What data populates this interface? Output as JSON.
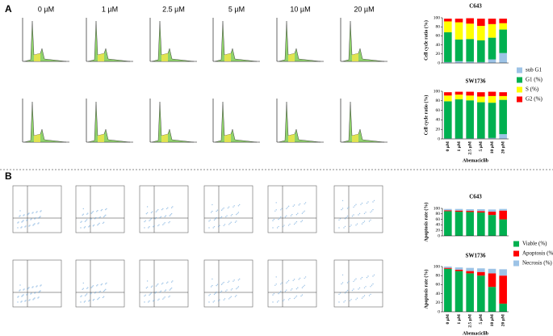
{
  "panels": {
    "a": "A",
    "b": "B"
  },
  "concentrations": [
    "0 µM",
    "1 µM",
    "2.5 µM",
    "5 µM",
    "10 µM",
    "20 µM"
  ],
  "chart_data": [
    {
      "type": "stacked-bar",
      "title": "C643",
      "ylabel": "Cell cycle ratio (%)",
      "ylim": [
        0,
        100
      ],
      "yticks": [
        0,
        20,
        40,
        60,
        80,
        100
      ],
      "legend": "right",
      "series": [
        {
          "name": "sub G1",
          "color": "#9dc3e6",
          "values": [
            2,
            4,
            3,
            2,
            8,
            22
          ]
        },
        {
          "name": "G1 (%)",
          "color": "#00b050",
          "values": [
            66,
            48,
            50,
            48,
            48,
            52
          ]
        },
        {
          "name": "S (%)",
          "color": "#ffff00",
          "values": [
            24,
            38,
            34,
            32,
            30,
            14
          ]
        },
        {
          "name": "G2 (%)",
          "color": "#ff0000",
          "values": [
            6,
            8,
            12,
            16,
            12,
            10
          ]
        }
      ]
    },
    {
      "type": "stacked-bar",
      "title": "SW1736",
      "ylabel": "Cell cycle ratio (%)",
      "xlabel": "Abemaciclib",
      "ylim": [
        0,
        100
      ],
      "yticks": [
        0,
        20,
        40,
        60,
        80,
        100
      ],
      "categories": [
        "0 µM",
        "1 µM",
        "2.5 µM",
        "5 µM",
        "10 µM",
        "20 µM"
      ],
      "series": [
        {
          "color": "#9dc3e6",
          "values": [
            1,
            1,
            1,
            1,
            2,
            10
          ]
        },
        {
          "color": "#00b050",
          "values": [
            78,
            82,
            80,
            76,
            74,
            72
          ]
        },
        {
          "color": "#ffff00",
          "values": [
            12,
            10,
            10,
            12,
            14,
            8
          ]
        },
        {
          "color": "#ff0000",
          "values": [
            7,
            6,
            8,
            9,
            9,
            8
          ]
        }
      ]
    },
    {
      "type": "stacked-bar",
      "title": "C643",
      "ylabel": "Apoptosis rate (%)",
      "ylim": [
        0,
        100
      ],
      "yticks": [
        0,
        20,
        40,
        60,
        80,
        100
      ],
      "legend": "right",
      "series": [
        {
          "name": "Viable (%)",
          "color": "#00b050",
          "values": [
            90,
            88,
            87,
            85,
            76,
            60
          ]
        },
        {
          "name": "Apoptosis (%)",
          "color": "#ff0000",
          "values": [
            3,
            4,
            4,
            5,
            12,
            32
          ]
        },
        {
          "name": "Necrosis (%)",
          "color": "#9dc3e6",
          "values": [
            5,
            6,
            6,
            7,
            8,
            6
          ]
        }
      ]
    },
    {
      "type": "stacked-bar",
      "title": "SW1736",
      "ylabel": "Apoptosis rate (%)",
      "xlabel": "Abemaciclib",
      "ylim": [
        0,
        100
      ],
      "yticks": [
        0,
        20,
        40,
        60,
        80,
        100
      ],
      "categories": [
        "0 µM",
        "1 µM",
        "2.5 µM",
        "5 µM",
        "10 µM",
        "20 µM"
      ],
      "series": [
        {
          "color": "#00b050",
          "values": [
            95,
            90,
            85,
            80,
            55,
            18
          ]
        },
        {
          "color": "#ff0000",
          "values": [
            2,
            3,
            5,
            8,
            30,
            62
          ]
        },
        {
          "color": "#9dc3e6",
          "values": [
            3,
            5,
            7,
            8,
            10,
            14
          ]
        }
      ]
    }
  ]
}
